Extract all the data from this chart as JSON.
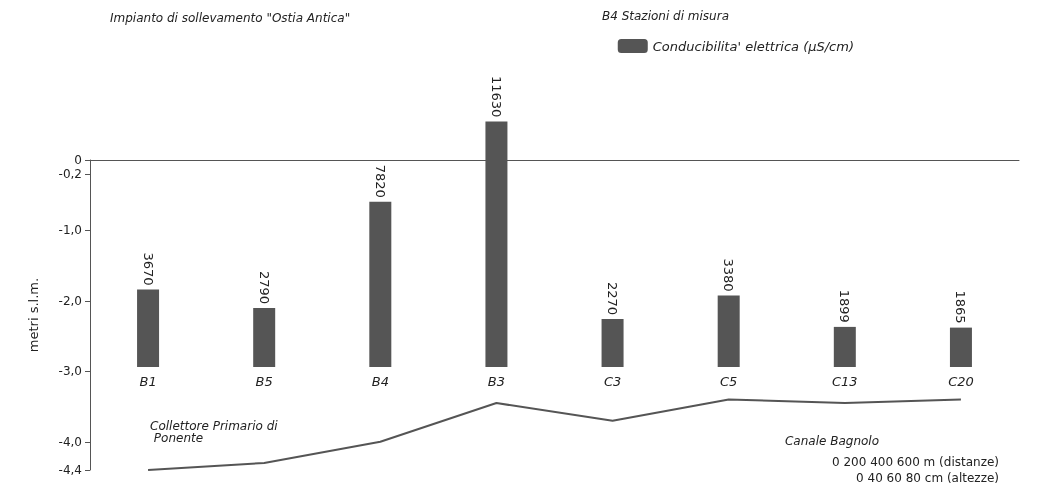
{
  "chart_data": [
    {
      "type": "bar",
      "categories": [
        "B1",
        "B5",
        "B4",
        "B3",
        "C3",
        "C5",
        "C13",
        "C20"
      ],
      "series": [
        {
          "name": "Conducibilita' elettrica (µS/cm)",
          "color": "#555555",
          "values": [
            3670,
            2790,
            7820,
            11630,
            2270,
            3380,
            1899,
            1865
          ]
        }
      ],
      "data_labels": true,
      "legend": "top right",
      "annotations": [
        "B4 Stazioni di misura",
        "Impianto di sollevamento \"Ostia Antica\""
      ]
    },
    {
      "type": "line",
      "categories": [
        null,
        null,
        null,
        null,
        null,
        null,
        null,
        null
      ],
      "series": [
        {
          "color": "#555555",
          "values": [
            -4.4,
            -4.3,
            -4.0,
            -3.45,
            -3.7,
            -3.4,
            -3.45,
            -3.4
          ]
        }
      ],
      "ylim": [
        -4.4,
        0
      ],
      "yticks": [
        0,
        {
          "value": -0.2,
          "label": "-0,2"
        },
        {
          "value": -1,
          "label": "-1,0"
        },
        {
          "value": -2,
          "label": "-2,0"
        },
        {
          "value": -3,
          "label": "-3,0"
        },
        {
          "value": -4,
          "label": "-4,0"
        },
        {
          "value": -4.4,
          "label": "-4,4"
        }
      ],
      "ylabel": "metri s.l.m.",
      "tick_labels": "y",
      "annotations": [
        "Collettore Primario di Ponente",
        "Canale Bagnolo",
        "0 200 400 600 m (distanze)",
        "0 40 60 80 cm (altezze)"
      ]
    }
  ]
}
